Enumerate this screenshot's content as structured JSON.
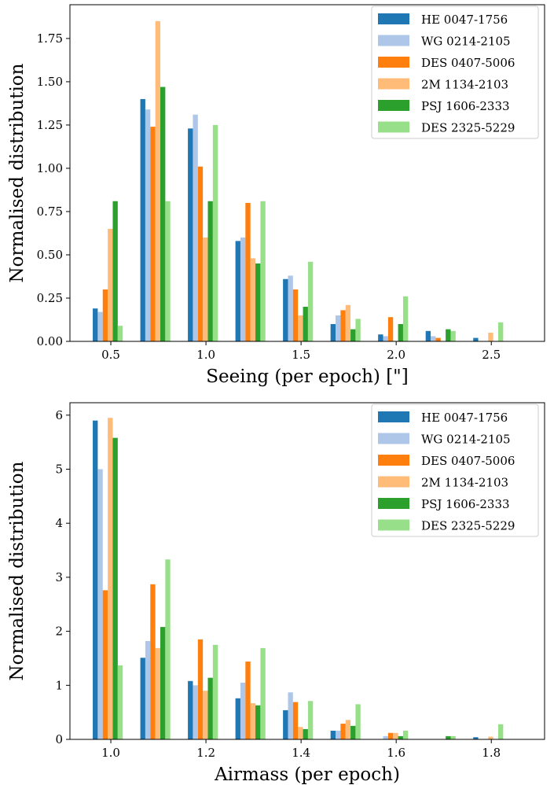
{
  "chart_data": [
    {
      "type": "bar",
      "x_label": "Seeing (per epoch) [\"]",
      "y_label": "Normalised distribution",
      "x": [
        0.5,
        0.75,
        1.0,
        1.25,
        1.5,
        1.75,
        2.0,
        2.25,
        2.5
      ],
      "bar_step": 0.25,
      "xlim": [
        0.285,
        2.78
      ],
      "ylim": [
        0,
        1.945
      ],
      "xticks": [
        0.5,
        {
          "value": 1.0,
          "label": "1.0"
        },
        1.5,
        {
          "value": 2.0,
          "label": "2.0"
        },
        2.5
      ],
      "yticks": [
        {
          "value": 0,
          "label": "0.00"
        },
        {
          "value": 0.25,
          "label": "0.25"
        },
        {
          "value": 0.5,
          "label": "0.50"
        },
        {
          "value": 0.75,
          "label": "0.75"
        },
        {
          "value": 1.0,
          "label": "1.00"
        },
        {
          "value": 1.25,
          "label": "1.25"
        },
        {
          "value": 1.5,
          "label": "1.50"
        },
        {
          "value": 1.75,
          "label": "1.75"
        }
      ],
      "legend": "upper right",
      "series": [
        {
          "name": "HE 0047-1756",
          "color": "#1f77b4",
          "values": [
            0.19,
            1.4,
            1.23,
            0.58,
            0.36,
            0.1,
            0.04,
            0.06,
            0.02
          ]
        },
        {
          "name": "WG 0214-2105",
          "color": "#aec7e8",
          "values": [
            0.17,
            1.34,
            1.31,
            0.6,
            0.38,
            0.15,
            0.03,
            0.03,
            0
          ]
        },
        {
          "name": "DES 0407-5006",
          "color": "#ff7f0e",
          "values": [
            0.3,
            1.24,
            1.01,
            0.8,
            0.3,
            0.18,
            0.14,
            0.02,
            0
          ]
        },
        {
          "name": "2M 1134-2103",
          "color": "#ffbb78",
          "values": [
            0.65,
            1.85,
            0.6,
            0.48,
            0.15,
            0.21,
            0,
            0,
            0.05
          ]
        },
        {
          "name": "PSJ 1606-2333",
          "color": "#2ca02c",
          "values": [
            0.81,
            1.47,
            0.81,
            0.45,
            0.2,
            0.07,
            0.1,
            0.07,
            0
          ]
        },
        {
          "name": "DES 2325-5229",
          "color": "#98df8a",
          "values": [
            0.09,
            0.81,
            1.25,
            0.81,
            0.46,
            0.13,
            0.26,
            0.06,
            0.11
          ]
        }
      ]
    },
    {
      "type": "bar",
      "x_label": "Airmass (per epoch)",
      "y_label": "Normalised distribution",
      "x": [
        1.0,
        1.1,
        1.2,
        1.3,
        1.4,
        1.5,
        1.6,
        1.7,
        1.8
      ],
      "bar_step": 0.1,
      "xlim": [
        0.914,
        1.912
      ],
      "ylim": [
        0,
        6.23
      ],
      "xticks": [
        {
          "value": 1.0,
          "label": "1.0"
        },
        1.2,
        1.4,
        1.6,
        1.8
      ],
      "yticks": [
        0,
        1,
        2,
        3,
        4,
        5,
        6
      ],
      "legend": "upper right",
      "series": [
        {
          "name": "HE 0047-1756",
          "color": "#1f77b4",
          "values": [
            5.9,
            1.51,
            1.08,
            0.76,
            0.54,
            0.16,
            0,
            0,
            0.04
          ]
        },
        {
          "name": "WG 0214-2105",
          "color": "#aec7e8",
          "values": [
            5.0,
            1.82,
            1.0,
            1.05,
            0.87,
            0.16,
            0.06,
            0,
            0
          ]
        },
        {
          "name": "DES 0407-5006",
          "color": "#ff7f0e",
          "values": [
            2.76,
            2.87,
            1.85,
            1.44,
            0.69,
            0.29,
            0.12,
            0,
            0
          ]
        },
        {
          "name": "2M 1134-2103",
          "color": "#ffbb78",
          "values": [
            5.95,
            1.69,
            0.9,
            0.67,
            0.23,
            0.36,
            0.12,
            0,
            0.05
          ]
        },
        {
          "name": "PSJ 1606-2333",
          "color": "#2ca02c",
          "values": [
            5.58,
            2.08,
            1.14,
            0.63,
            0.19,
            0.25,
            0.06,
            0.06,
            0
          ]
        },
        {
          "name": "DES 2325-5229",
          "color": "#98df8a",
          "values": [
            1.37,
            3.33,
            1.75,
            1.69,
            0.71,
            0.65,
            0.16,
            0.06,
            0.28
          ]
        }
      ]
    }
  ]
}
